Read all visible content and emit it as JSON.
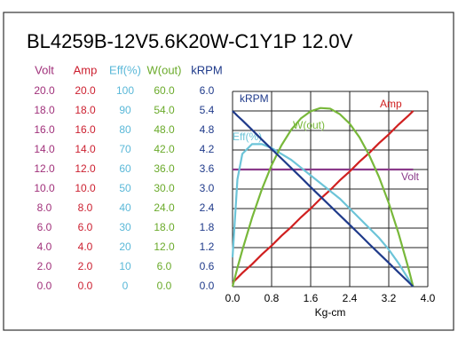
{
  "chart_data": {
    "type": "line",
    "title": "BL4259B-12V5.6K20W-C1Y1P   12.0V",
    "x_label": "Kg-cm",
    "xlim": [
      0,
      4.0
    ],
    "xticks": [
      {
        "value": 0,
        "label": "0.0"
      },
      0.8,
      1.6,
      2.4,
      3.2,
      {
        "value": 4.0,
        "label": "4.0"
      }
    ],
    "grid": true,
    "axes": [
      {
        "name": "Volt",
        "color": "#a0307a",
        "ylim": [
          0,
          20
        ],
        "yticks": [
          {
            "value": 0,
            "label": "0.0"
          },
          {
            "value": 2,
            "label": "2.0"
          },
          {
            "value": 4,
            "label": "4.0"
          },
          {
            "value": 6,
            "label": "6.0"
          },
          {
            "value": 8,
            "label": "8.0"
          },
          {
            "value": 10,
            "label": "10.0"
          },
          {
            "value": 12,
            "label": "12.0"
          },
          {
            "value": 14,
            "label": "14.0"
          },
          {
            "value": 16,
            "label": "16.0"
          },
          {
            "value": 18,
            "label": "18.0"
          },
          {
            "value": 20,
            "label": "20.0"
          }
        ]
      },
      {
        "name": "Amp",
        "color": "#cc2030",
        "ylim": [
          0,
          20
        ],
        "yticks": [
          {
            "value": 0,
            "label": "0.0"
          },
          {
            "value": 2,
            "label": "2.0"
          },
          {
            "value": 4,
            "label": "4.0"
          },
          {
            "value": 6,
            "label": "6.0"
          },
          {
            "value": 8,
            "label": "8.0"
          },
          {
            "value": 10,
            "label": "10.0"
          },
          {
            "value": 12,
            "label": "12.0"
          },
          {
            "value": 14,
            "label": "14.0"
          },
          {
            "value": 16,
            "label": "16.0"
          },
          {
            "value": 18,
            "label": "18.0"
          },
          {
            "value": 20,
            "label": "20.0"
          }
        ]
      },
      {
        "name": "Eff(%)",
        "color": "#5ab8d8",
        "ylim": [
          0,
          100
        ],
        "yticks": [
          0,
          10,
          20,
          30,
          40,
          50,
          60,
          70,
          80,
          90,
          100
        ]
      },
      {
        "name": "W(out)",
        "color": "#6aaa2a",
        "ylim": [
          0,
          60
        ],
        "yticks": [
          {
            "value": 0,
            "label": "0.0"
          },
          {
            "value": 6,
            "label": "6.0"
          },
          {
            "value": 12,
            "label": "12.0"
          },
          {
            "value": 18,
            "label": "18.0"
          },
          {
            "value": 24,
            "label": "24.0"
          },
          {
            "value": 30,
            "label": "30.0"
          },
          {
            "value": 36,
            "label": "36.0"
          },
          {
            "value": 42,
            "label": "42.0"
          },
          {
            "value": 48,
            "label": "48.0"
          },
          {
            "value": 54,
            "label": "54.0"
          },
          {
            "value": 60,
            "label": "60.0"
          }
        ]
      },
      {
        "name": "kRPM",
        "color": "#1f3a8a",
        "ylim": [
          0,
          6.0
        ],
        "yticks": [
          {
            "value": 0,
            "label": "0.0"
          },
          {
            "value": 0.6,
            "label": "0.6"
          },
          {
            "value": 1.2,
            "label": "1.2"
          },
          {
            "value": 1.8,
            "label": "1.8"
          },
          {
            "value": 2.4,
            "label": "2.4"
          },
          {
            "value": 3,
            "label": "3.0"
          },
          {
            "value": 3.6,
            "label": "3.6"
          },
          {
            "value": 4.2,
            "label": "4.2"
          },
          {
            "value": 4.8,
            "label": "4.8"
          },
          {
            "value": 5.4,
            "label": "5.4"
          },
          {
            "value": 6,
            "label": "6.0"
          }
        ]
      }
    ],
    "x": [
      0,
      0.1,
      0.2,
      0.4,
      0.6,
      0.8,
      1.0,
      1.2,
      1.4,
      1.6,
      1.8,
      2.0,
      2.2,
      2.4,
      2.6,
      2.8,
      3.0,
      3.2,
      3.4,
      3.6,
      3.7
    ],
    "series": [
      {
        "name": "Volt",
        "axis": 0,
        "color": "#8a3a8a",
        "values": [
          12,
          12,
          12,
          12,
          12,
          12,
          12,
          12,
          12,
          12,
          12,
          12,
          12,
          12,
          12,
          12,
          12,
          12,
          12,
          12,
          12
        ]
      },
      {
        "name": "Amp",
        "axis": 1,
        "color": "#d02020",
        "values": [
          0.4,
          0.9,
          1.4,
          2.3,
          3.3,
          4.2,
          5.2,
          6.1,
          7.1,
          8.0,
          9.0,
          9.9,
          10.9,
          11.8,
          12.8,
          13.7,
          14.7,
          15.6,
          16.6,
          17.5,
          18.0
        ]
      },
      {
        "name": "Eff(%)",
        "axis": 2,
        "color": "#6cc4d8",
        "values": [
          15,
          55,
          68,
          73,
          73,
          71,
          68,
          65,
          61,
          57,
          53,
          49,
          45,
          40,
          35,
          30,
          25,
          19,
          12,
          4,
          0
        ]
      },
      {
        "name": "W(out)",
        "axis": 3,
        "color": "#78b83a",
        "values": [
          0,
          5.8,
          11.2,
          21.2,
          29.9,
          37.3,
          43.4,
          48.2,
          51.7,
          53.9,
          54.9,
          54.7,
          53.0,
          50.1,
          45.9,
          40.4,
          33.7,
          25.7,
          16.4,
          5.8,
          0
        ]
      },
      {
        "name": "kRPM",
        "axis": 4,
        "color": "#1f3a8a",
        "values": [
          5.4,
          5.25,
          5.11,
          4.82,
          4.52,
          4.23,
          3.94,
          3.65,
          3.36,
          3.06,
          2.77,
          2.48,
          2.19,
          1.9,
          1.61,
          1.31,
          1.02,
          0.73,
          0.44,
          0.15,
          0
        ]
      }
    ]
  }
}
